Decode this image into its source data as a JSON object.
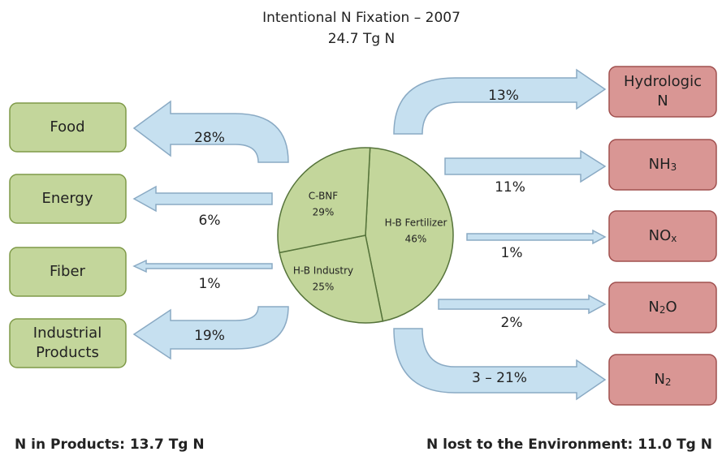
{
  "title": "Intentional N Fixation – 2007",
  "subtitle": "24.7 Tg N",
  "pie": {
    "slices": [
      {
        "name": "H-B Fertilizer",
        "value": 46,
        "value_label": "46%"
      },
      {
        "name": "H-B Industry",
        "value": 25,
        "value_label": "25%"
      },
      {
        "name": "C-BNF",
        "value": 29,
        "value_label": "29%"
      }
    ]
  },
  "products": [
    {
      "lines": [
        "Food"
      ],
      "share": "28%"
    },
    {
      "lines": [
        "Energy"
      ],
      "share": "6%"
    },
    {
      "lines": [
        "Fiber"
      ],
      "share": "1%"
    },
    {
      "lines": [
        "Industrial",
        "Products"
      ],
      "share": "19%"
    }
  ],
  "losses": [
    {
      "lines": [
        [
          "Hydrologic"
        ],
        [
          "N"
        ]
      ],
      "share": "13%"
    },
    {
      "lines": [
        [
          "NH",
          "3"
        ]
      ],
      "share": "11%"
    },
    {
      "lines": [
        [
          "NO",
          "x"
        ]
      ],
      "share": "1%"
    },
    {
      "lines": [
        [
          "N",
          "2",
          "O"
        ]
      ],
      "share": "2%"
    },
    {
      "lines": [
        [
          "N",
          "2"
        ]
      ],
      "share": "3 – 21%"
    }
  ],
  "footer": {
    "left": "N in Products: 13.7 Tg N",
    "right": "N lost to the Environment: 11.0 Tg N"
  }
}
